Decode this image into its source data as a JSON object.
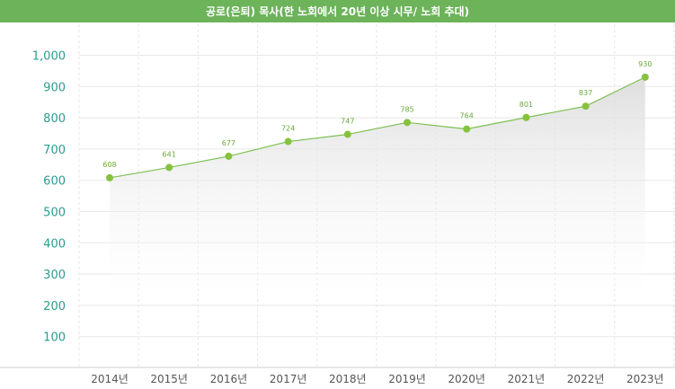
{
  "header": {
    "title": "공로(은퇴) 목사(한 노회에서 20년 이상 시무/ 노회 추대)"
  },
  "colors": {
    "header_bg": "#6cb35a",
    "line": "#7cc04e",
    "point": "#86c23d",
    "data_label": "#6aa83a",
    "y_tick": "#2a9d8f",
    "x_tick": "#555555"
  },
  "chart_data": {
    "type": "area",
    "title": "공로(은퇴) 목사(한 노회에서 20년 이상 시무/ 노회 추대)",
    "categories": [
      "2014년",
      "2015년",
      "2016년",
      "2017년",
      "2018년",
      "2019년",
      "2020년",
      "2021년",
      "2022년",
      "2023년"
    ],
    "values": [
      608,
      641,
      677,
      724,
      747,
      785,
      764,
      801,
      837,
      930
    ],
    "y_ticks": [
      "100",
      "200",
      "300",
      "400",
      "500",
      "600",
      "700",
      "800",
      "900",
      "1,000"
    ],
    "y_tick_values": [
      100,
      200,
      300,
      400,
      500,
      600,
      700,
      800,
      900,
      1000
    ],
    "ylim": [
      0,
      1000
    ],
    "grid": true,
    "legend": "none"
  }
}
